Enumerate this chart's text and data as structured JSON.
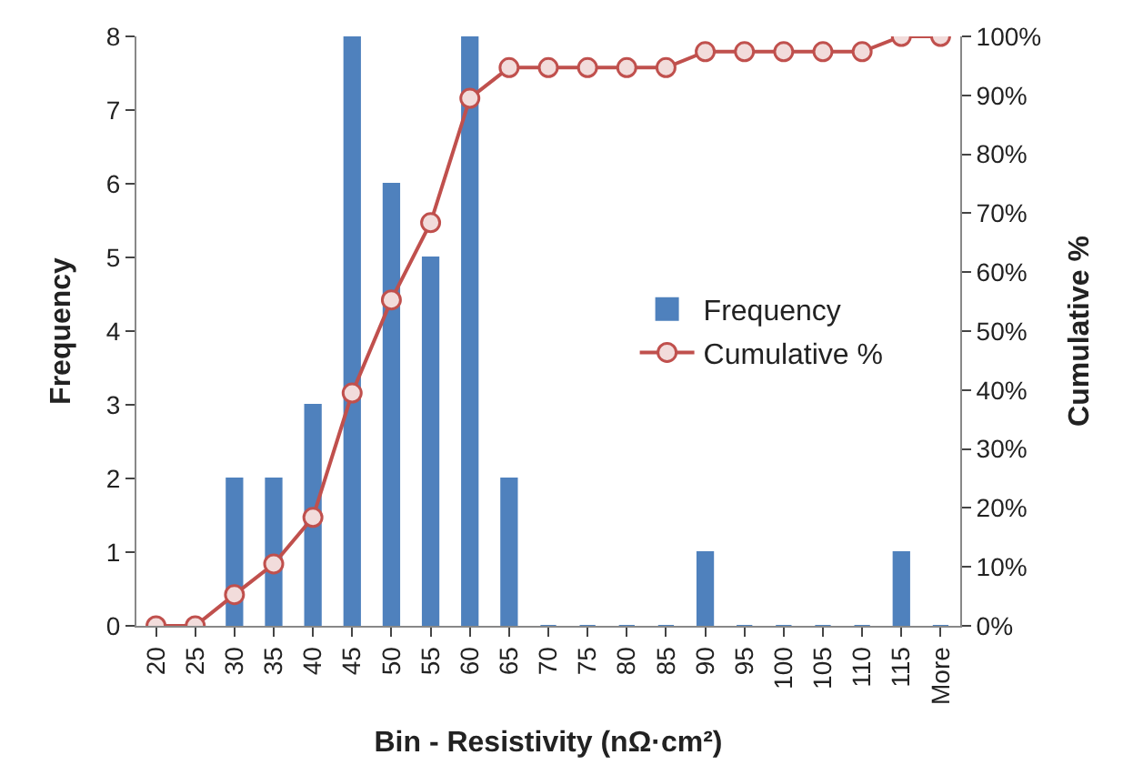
{
  "chart_data": {
    "type": "bar",
    "xlabel": "Bin - Resistivity (nΩ·cm²)",
    "ylabel": "Frequency",
    "y2label": "Cumulative %",
    "categories": [
      "20",
      "25",
      "30",
      "35",
      "40",
      "45",
      "50",
      "55",
      "60",
      "65",
      "70",
      "75",
      "80",
      "85",
      "90",
      "95",
      "100",
      "105",
      "110",
      "115",
      "More"
    ],
    "series": [
      {
        "name": "Frequency",
        "color": "#4f81bd",
        "values": [
          0,
          0,
          2,
          2,
          3,
          8,
          6,
          5,
          8,
          2,
          0,
          0,
          0,
          0,
          1,
          0,
          0,
          0,
          0,
          1,
          0
        ]
      },
      {
        "name": "Cumulative %",
        "type": "line",
        "axis": "y2",
        "color": "#c0504d",
        "marker": "circle",
        "values": [
          0,
          0,
          5.3,
          10.5,
          18.4,
          39.5,
          55.3,
          68.4,
          89.5,
          94.7,
          94.7,
          94.7,
          94.7,
          94.7,
          97.4,
          97.4,
          97.4,
          97.4,
          97.4,
          100,
          100
        ]
      }
    ],
    "ylim": [
      0,
      8
    ],
    "yticks": [
      0,
      1,
      2,
      3,
      4,
      5,
      6,
      7,
      8
    ],
    "y2lim": [
      0,
      100
    ],
    "y2ticks": [
      {
        "value": 0,
        "label": "0%"
      },
      {
        "value": 10,
        "label": "10%"
      },
      {
        "value": 20,
        "label": "20%"
      },
      {
        "value": 30,
        "label": "30%"
      },
      {
        "value": 40,
        "label": "40%"
      },
      {
        "value": 50,
        "label": "50%"
      },
      {
        "value": 60,
        "label": "60%"
      },
      {
        "value": 70,
        "label": "70%"
      },
      {
        "value": 80,
        "label": "80%"
      },
      {
        "value": 90,
        "label": "90%"
      },
      {
        "value": 100,
        "label": "100%"
      }
    ],
    "grid": false,
    "legend": "right"
  }
}
